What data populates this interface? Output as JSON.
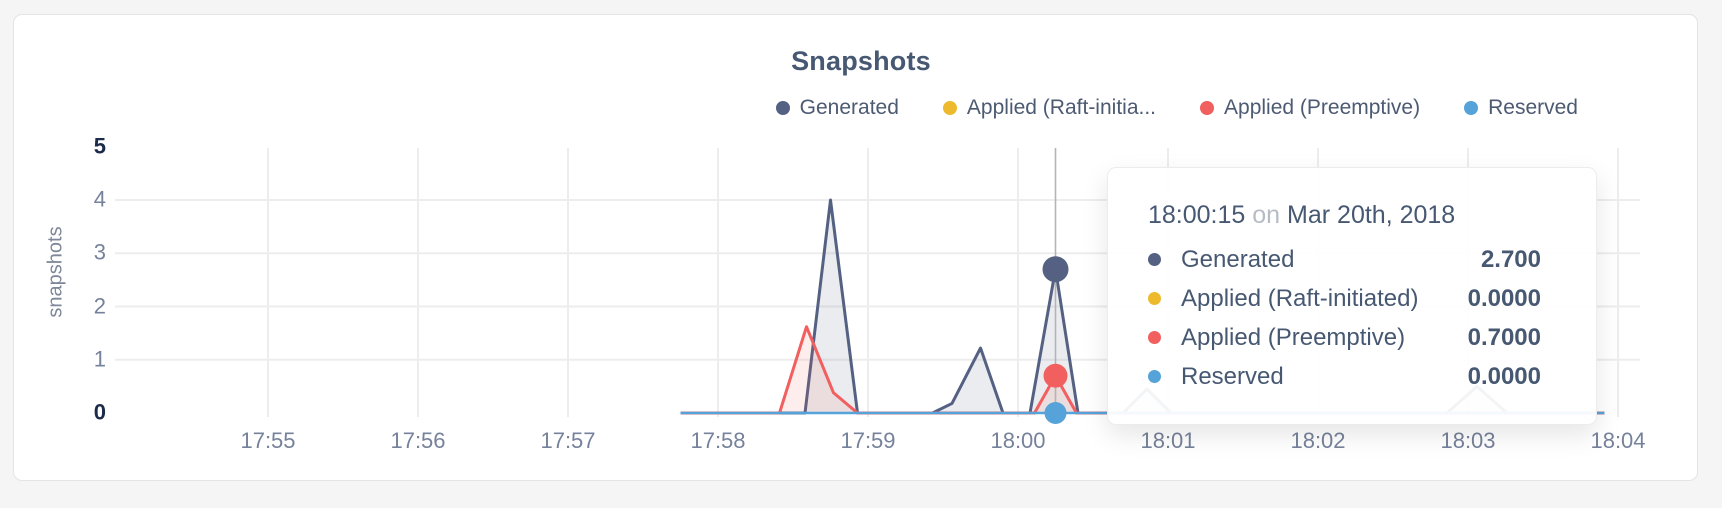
{
  "chart_data": {
    "type": "area",
    "title": "Snapshots",
    "ylabel": "snapshots",
    "xlabel": "",
    "x_unit": "minutes_after_17:55",
    "x_ticks": [
      "17:55",
      "17:56",
      "17:57",
      "17:58",
      "17:59",
      "18:00",
      "18:01",
      "18:02",
      "18:03",
      "18:04"
    ],
    "y_ticks": [
      0,
      1,
      2,
      3,
      4,
      5
    ],
    "ylim": [
      0,
      5
    ],
    "xlim": [
      0,
      9
    ],
    "grid": true,
    "legend_position": "top-right",
    "legend": [
      {
        "display": "Generated",
        "color": "#546182"
      },
      {
        "display": "Applied (Raft-initia...",
        "color": "#eeba2d"
      },
      {
        "display": "Applied (Preemptive)",
        "color": "#f25f5f"
      },
      {
        "display": "Reserved",
        "color": "#55a3d9"
      }
    ],
    "series": [
      {
        "name": "Generated",
        "color": "#546182",
        "fill": "rgba(90,105,135,0.13)",
        "points": [
          [
            2.75,
            0
          ],
          [
            3.58,
            0
          ],
          [
            3.75,
            4.0
          ],
          [
            3.93,
            0
          ],
          [
            4.43,
            0
          ],
          [
            4.56,
            0.18
          ],
          [
            4.75,
            1.22
          ],
          [
            4.9,
            0
          ],
          [
            5.08,
            0
          ],
          [
            5.25,
            2.7
          ],
          [
            5.4,
            0
          ],
          [
            5.7,
            0
          ],
          [
            5.86,
            0.45
          ],
          [
            6.02,
            0
          ],
          [
            7.86,
            0
          ],
          [
            8.06,
            0.5
          ],
          [
            8.26,
            0
          ],
          [
            8.91,
            0
          ]
        ]
      },
      {
        "name": "Applied (Raft-initiated)",
        "color": "#eeba2d",
        "fill": "none",
        "points": [
          [
            2.75,
            0
          ],
          [
            8.91,
            0
          ]
        ]
      },
      {
        "name": "Applied (Preemptive)",
        "color": "#f25f5f",
        "fill": "rgba(242,95,95,0.11)",
        "points": [
          [
            2.75,
            0
          ],
          [
            3.41,
            0
          ],
          [
            3.59,
            1.62
          ],
          [
            3.77,
            0.38
          ],
          [
            3.93,
            0
          ],
          [
            5.11,
            0
          ],
          [
            5.25,
            0.7
          ],
          [
            5.39,
            0
          ],
          [
            8.91,
            0
          ]
        ]
      },
      {
        "name": "Reserved",
        "color": "#55a3d9",
        "fill": "none",
        "points": [
          [
            2.75,
            0
          ],
          [
            8.91,
            0
          ]
        ]
      }
    ],
    "hover": {
      "x": 5.25,
      "time_label": "18:00:15",
      "crosshair_color": "#b4b4b4",
      "markers": [
        {
          "series": "Generated",
          "value": 2.7,
          "color": "#546182"
        },
        {
          "series": "Applied (Raft-initiated)",
          "value": 0,
          "color": "#eeba2d"
        },
        {
          "series": "Applied (Preemptive)",
          "value": 0.7,
          "color": "#f25f5f"
        },
        {
          "series": "Reserved",
          "value": 0,
          "color": "#55a3d9"
        }
      ]
    }
  },
  "tooltip": {
    "time": "18:00:15",
    "connector": "on",
    "date": "Mar 20th, 2018",
    "rows": [
      {
        "label": "Generated",
        "value": "2.700",
        "color": "#546182"
      },
      {
        "label": "Applied (Raft-initiated)",
        "value": "0.0000",
        "color": "#eeba2d"
      },
      {
        "label": "Applied (Preemptive)",
        "value": "0.7000",
        "color": "#f25f5f"
      },
      {
        "label": "Reserved",
        "value": "0.0000",
        "color": "#55a3d9"
      }
    ]
  },
  "colors": {
    "card_background": "#ffffff",
    "page_background": "#f5f5f6",
    "gridline": "#ededed",
    "title_text": "#475872",
    "tick_text": "#76829b",
    "tick_text_strong": "#1c2b4a",
    "tooltip_muted": "#b6bcc6"
  }
}
